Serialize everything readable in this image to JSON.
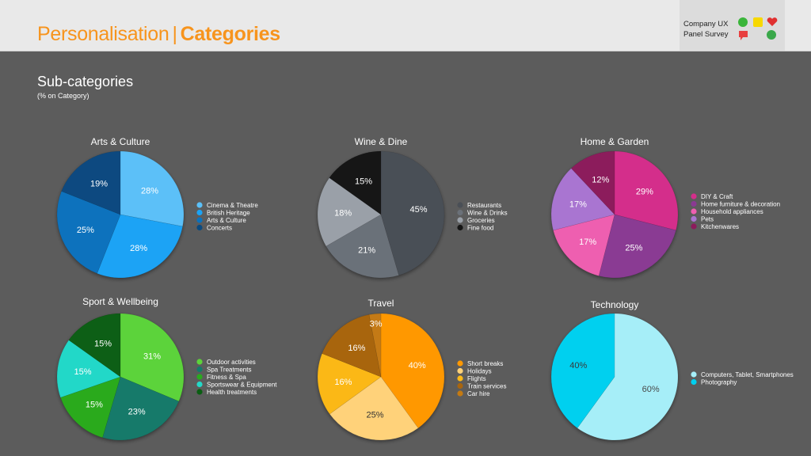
{
  "header": {
    "title_main": "Personalisation",
    "title_separator": "|",
    "title_bold": "Categories",
    "brand_line1": "Company UX",
    "brand_line2": "Panel Survey",
    "brand_icons": [
      "green-circle-icon",
      "diamond-icon",
      "heart-icon",
      "speech-bubble-icon",
      "globe-icon"
    ]
  },
  "page": {
    "subtitle": "Sub-categories",
    "subnote": "(% on Category)"
  },
  "colors": {
    "background": "#5c5c5c",
    "accent": "#f7941d"
  },
  "chart_data": [
    {
      "type": "pie",
      "title": "Arts & Culture",
      "slices": [
        {
          "label": "Cinema & Theatre",
          "value": 28,
          "color": "#5bc0f8",
          "text_color": "#ffffff"
        },
        {
          "label": "British Heritage",
          "value": 28,
          "color": "#1aa3f5",
          "text_color": "#ffffff"
        },
        {
          "label": "Arts & Culture",
          "value": 25,
          "color": "#0b72bd",
          "text_color": "#ffffff"
        },
        {
          "label": "Concerts",
          "value": 19,
          "color": "#0a4a80",
          "text_color": "#ffffff"
        }
      ]
    },
    {
      "type": "pie",
      "title": "Wine & Dine",
      "slices": [
        {
          "label": "Restaurants",
          "value": 45,
          "color": "#4a4f56",
          "text_color": "#ffffff"
        },
        {
          "label": "Wine & Drinks",
          "value": 21,
          "color": "#6b7179",
          "text_color": "#ffffff"
        },
        {
          "label": "Groceries",
          "value": 18,
          "color": "#9aa0a8",
          "text_color": "#ffffff"
        },
        {
          "label": "Fine food",
          "value": 15,
          "color": "#151515",
          "text_color": "#ffffff"
        }
      ]
    },
    {
      "type": "pie",
      "title": "Home & Garden",
      "slices": [
        {
          "label": "DIY & Craft",
          "value": 29,
          "color": "#d42e8b",
          "text_color": "#ffffff"
        },
        {
          "label": "Home furniture & decoration",
          "value": 25,
          "color": "#8a3a93",
          "text_color": "#ffffff"
        },
        {
          "label": "Household appliances",
          "value": 17,
          "color": "#ee5fb0",
          "text_color": "#ffffff"
        },
        {
          "label": "Pets",
          "value": 17,
          "color": "#a975d1",
          "text_color": "#ffffff"
        },
        {
          "label": "Kitchenwares",
          "value": 12,
          "color": "#8c1b5c",
          "text_color": "#ffffff"
        }
      ]
    },
    {
      "type": "pie",
      "title": "Sport & Wellbeing",
      "slices": [
        {
          "label": "Outdoor activities",
          "value": 31,
          "color": "#5cd33a",
          "text_color": "#ffffff"
        },
        {
          "label": "Spa Treatments",
          "value": 23,
          "color": "#157a6a",
          "text_color": "#ffffff"
        },
        {
          "label": "Fitness & Spa",
          "value": 15,
          "color": "#2aaa1e",
          "text_color": "#ffffff"
        },
        {
          "label": "Sportswear & Equipment",
          "value": 15,
          "color": "#24d8c8",
          "text_color": "#ffffff"
        },
        {
          "label": "Health treatments",
          "value": 15,
          "color": "#0a5e12",
          "text_color": "#ffffff"
        }
      ]
    },
    {
      "type": "pie",
      "title": "Travel",
      "slices": [
        {
          "label": "Short breaks",
          "value": 40,
          "color": "#ff9800",
          "text_color": "#ffffff"
        },
        {
          "label": "Holidays",
          "value": 25,
          "color": "#ffd27a",
          "text_color": "#333333"
        },
        {
          "label": "Flights",
          "value": 16,
          "color": "#fbb818",
          "text_color": "#ffffff"
        },
        {
          "label": "Train services",
          "value": 16,
          "color": "#a8650f",
          "text_color": "#ffffff"
        },
        {
          "label": "Car hire",
          "value": 3,
          "color": "#c47a12",
          "text_color": "#ffffff"
        }
      ]
    },
    {
      "type": "pie",
      "title": "Technology",
      "slices": [
        {
          "label": "Computers, Tablet, Smartphones",
          "value": 60,
          "color": "#a6eef8",
          "text_color": "#4a4a4a"
        },
        {
          "label": "Photography",
          "value": 40,
          "color": "#00d0ef",
          "text_color": "#3a3a3a"
        }
      ]
    }
  ]
}
